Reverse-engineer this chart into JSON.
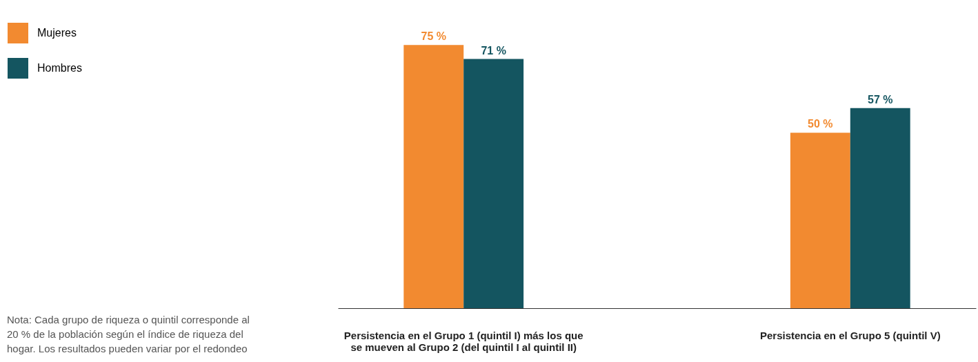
{
  "chart_data": {
    "type": "bar",
    "categories": [
      "Persistencia en el Grupo 1 (quintil I) más los que se mueven al Grupo 2 (del quintil I al quintil II)",
      "Persistencia en el Grupo 5 (quintil V)"
    ],
    "series": [
      {
        "name": "Mujeres",
        "color": "#f28a30",
        "values": [
          75,
          50
        ],
        "value_labels": [
          "75 %",
          "50 %"
        ]
      },
      {
        "name": "Hombres",
        "color": "#145560",
        "values": [
          71,
          57
        ],
        "value_labels": [
          "71 %",
          "57 %"
        ]
      }
    ],
    "legend": "top left",
    "annotations": [
      "Nota: Cada grupo de riqueza o quintil corresponde al 20 % de la población según el índice de riqueza del hogar. Los resultados pueden variar por el redondeo"
    ]
  }
}
